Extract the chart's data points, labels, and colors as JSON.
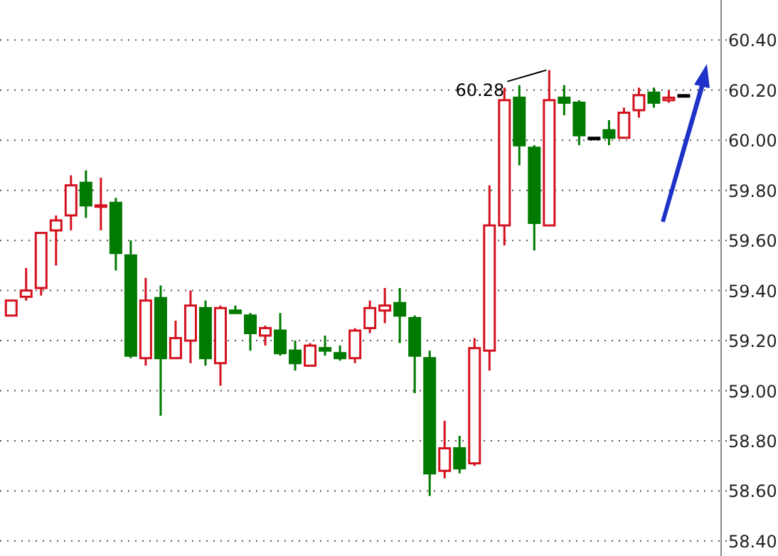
{
  "chart_data": {
    "type": "candlestick",
    "categories": [
      null,
      null,
      null,
      null,
      null,
      null,
      null,
      null,
      null,
      null,
      null,
      null,
      null,
      null,
      null,
      null,
      null,
      null,
      null,
      null,
      null,
      null,
      null,
      null,
      null,
      null,
      null,
      null,
      null,
      null,
      null,
      null,
      null,
      null,
      null,
      null,
      null,
      null,
      null,
      null,
      null,
      null,
      null,
      null,
      null,
      null
    ],
    "ohlc": [
      [
        59.3,
        59.36,
        59.3,
        59.36
      ],
      [
        59.375,
        59.49,
        59.36,
        59.4
      ],
      [
        59.41,
        59.63,
        59.38,
        59.63
      ],
      [
        59.64,
        59.7,
        59.5,
        59.68
      ],
      [
        59.7,
        59.86,
        59.64,
        59.82
      ],
      [
        59.83,
        59.88,
        59.69,
        59.74
      ],
      [
        59.74,
        59.85,
        59.64,
        59.74
      ],
      [
        59.75,
        59.77,
        59.48,
        59.55
      ],
      [
        59.54,
        59.6,
        59.13,
        59.14
      ],
      [
        59.13,
        59.45,
        59.1,
        59.36
      ],
      [
        59.37,
        59.42,
        58.9,
        59.13
      ],
      [
        59.13,
        59.28,
        59.13,
        59.21
      ],
      [
        59.2,
        59.4,
        59.11,
        59.34
      ],
      [
        59.33,
        59.36,
        59.1,
        59.13
      ],
      [
        59.11,
        59.34,
        59.02,
        59.33
      ],
      [
        59.32,
        59.34,
        59.31,
        59.31
      ],
      [
        59.3,
        59.31,
        59.16,
        59.23
      ],
      [
        59.22,
        59.26,
        59.18,
        59.25
      ],
      [
        59.24,
        59.31,
        59.14,
        59.15
      ],
      [
        59.16,
        59.2,
        59.08,
        59.11
      ],
      [
        59.1,
        59.19,
        59.1,
        59.18
      ],
      [
        59.17,
        59.22,
        59.14,
        59.16
      ],
      [
        59.15,
        59.18,
        59.12,
        59.13
      ],
      [
        59.13,
        59.25,
        59.11,
        59.24
      ],
      [
        59.25,
        59.36,
        59.23,
        59.33
      ],
      [
        59.32,
        59.41,
        59.27,
        59.34
      ],
      [
        59.35,
        59.41,
        59.19,
        59.3
      ],
      [
        59.29,
        59.3,
        58.99,
        59.14
      ],
      [
        59.13,
        59.16,
        58.58,
        58.67
      ],
      [
        58.68,
        58.88,
        58.65,
        58.77
      ],
      [
        58.77,
        58.82,
        58.67,
        58.69
      ],
      [
        58.71,
        59.21,
        58.7,
        59.17
      ],
      [
        59.16,
        59.82,
        59.08,
        59.66
      ],
      [
        59.66,
        60.21,
        59.58,
        60.16
      ],
      [
        60.17,
        60.22,
        59.9,
        59.98
      ],
      [
        59.97,
        59.98,
        59.56,
        59.67
      ],
      [
        59.66,
        60.28,
        59.66,
        60.16
      ],
      [
        60.17,
        60.22,
        60.1,
        60.15
      ],
      [
        60.15,
        60.16,
        59.98,
        60.02
      ],
      [
        60.01,
        60.01,
        60.0,
        60.01
      ],
      [
        60.04,
        60.08,
        59.98,
        60.01
      ],
      [
        60.01,
        60.13,
        60.01,
        60.11
      ],
      [
        60.12,
        60.21,
        60.09,
        60.18
      ],
      [
        60.19,
        60.21,
        60.13,
        60.15
      ],
      [
        60.16,
        60.2,
        60.15,
        60.17
      ],
      [
        60.18,
        60.18,
        60.18,
        60.18
      ]
    ],
    "colors": [
      "#d4121f",
      "#d4121f",
      "#d4121f",
      "#d4121f",
      "#d4121f",
      "#007a00",
      "#d4121f",
      "#007a00",
      "#007a00",
      "#d4121f",
      "#007a00",
      "#d4121f",
      "#d4121f",
      "#007a00",
      "#d4121f",
      "#007a00",
      "#007a00",
      "#d4121f",
      "#007a00",
      "#007a00",
      "#d4121f",
      "#007a00",
      "#007a00",
      "#d4121f",
      "#d4121f",
      "#d4121f",
      "#007a00",
      "#007a00",
      "#007a00",
      "#d4121f",
      "#007a00",
      "#d4121f",
      "#d4121f",
      "#d4121f",
      "#007a00",
      "#007a00",
      "#d4121f",
      "#007a00",
      "#007a00",
      "#000000",
      "#007a00",
      "#d4121f",
      "#d4121f",
      "#007a00",
      "#d4121f",
      "#000000"
    ],
    "ylim": [
      58.34,
      60.56
    ],
    "yticks": [
      {
        "value": 58.4,
        "label": "58.40"
      },
      {
        "value": 58.6,
        "label": "58.60"
      },
      {
        "value": 58.8,
        "label": "58.80"
      },
      {
        "value": 59.0,
        "label": "59.00"
      },
      {
        "value": 59.2,
        "label": "59.20"
      },
      {
        "value": 59.4,
        "label": "59.40"
      },
      {
        "value": 59.6,
        "label": "59.60"
      },
      {
        "value": 59.8,
        "label": "59.80"
      },
      {
        "value": 60.0,
        "label": "60.00"
      },
      {
        "value": 60.2,
        "label": "60.20"
      },
      {
        "value": 60.4,
        "label": "60.40"
      }
    ],
    "grid": "y",
    "annotations": [
      "60.28"
    ]
  }
}
